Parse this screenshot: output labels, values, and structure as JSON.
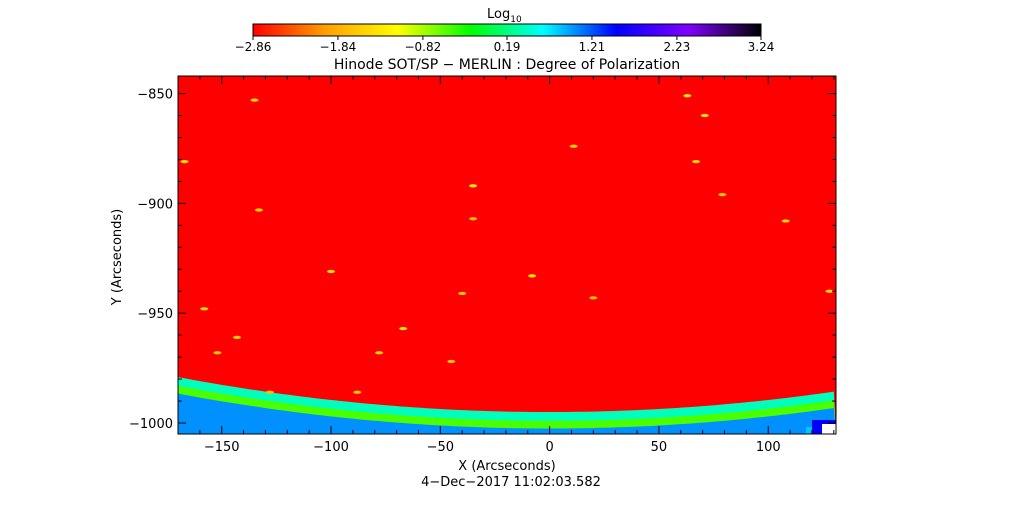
{
  "chart_data": {
    "type": "heatmap",
    "title": "Hinode SOT/SP − MERLIN : Degree of Polarization",
    "xlabel": "X (Arcseconds)",
    "ylabel": "Y (Arcseconds)",
    "date": "4−Dec−2017 11:02:03.582",
    "xlim": [
      -170,
      131
    ],
    "ylim": [
      -1005,
      -842
    ],
    "x_ticks": [
      -150,
      -100,
      -50,
      0,
      50,
      100
    ],
    "x_tick_labels": [
      "−150",
      "−100",
      "−50",
      "0",
      "50",
      "100"
    ],
    "y_ticks": [
      -850,
      -900,
      -950,
      -1000
    ],
    "y_tick_labels": [
      "−850",
      "−900",
      "−950",
      "−1000"
    ],
    "colorbar": {
      "label_base": "Log",
      "label_sub": "10",
      "range": [
        -2.86,
        3.24
      ],
      "ticks": [
        -2.86,
        -1.84,
        -0.82,
        0.19,
        1.21,
        2.23,
        3.24
      ],
      "tick_labels": [
        "−2.86",
        "−1.84",
        "−0.82",
        "0.19",
        "1.21",
        "2.23",
        "3.24"
      ],
      "colormap": [
        "#ff0000",
        "#ffa000",
        "#ffff00",
        "#00ff00",
        "#00ffff",
        "#0000ff",
        "#8000ff",
        "#000000"
      ]
    },
    "background_value": -2.86,
    "limb_band_value": -0.5,
    "features": [
      {
        "x": -135,
        "y": -853,
        "v": -1.5
      },
      {
        "x": 63,
        "y": -851,
        "v": -1.3
      },
      {
        "x": 71,
        "y": -860,
        "v": -1.4
      },
      {
        "x": 11,
        "y": -874,
        "v": -1.5
      },
      {
        "x": -167,
        "y": -881,
        "v": -1.4
      },
      {
        "x": 67,
        "y": -881,
        "v": -1.5
      },
      {
        "x": -35,
        "y": -892,
        "v": -1.3
      },
      {
        "x": 79,
        "y": -896,
        "v": -1.6
      },
      {
        "x": -133,
        "y": -903,
        "v": -1.5
      },
      {
        "x": -35,
        "y": -907,
        "v": -1.7
      },
      {
        "x": 108,
        "y": -908,
        "v": -1.5
      },
      {
        "x": -100,
        "y": -931,
        "v": -1.4
      },
      {
        "x": -8,
        "y": -933,
        "v": -1.3
      },
      {
        "x": -40,
        "y": -941,
        "v": -1.6
      },
      {
        "x": -158,
        "y": -948,
        "v": -1.5
      },
      {
        "x": -67,
        "y": -957,
        "v": -1.3
      },
      {
        "x": -143,
        "y": -961,
        "v": -1.5
      },
      {
        "x": -152,
        "y": -968,
        "v": -1.6
      },
      {
        "x": -78,
        "y": -968,
        "v": -1.5
      },
      {
        "x": -45,
        "y": -972,
        "v": -1.6
      },
      {
        "x": -128,
        "y": -986,
        "v": -1.7
      },
      {
        "x": -88,
        "y": -986,
        "v": -1.6
      },
      {
        "x": 20,
        "y": -943,
        "v": -1.7
      },
      {
        "x": 128,
        "y": -940,
        "v": -1.5
      }
    ]
  }
}
